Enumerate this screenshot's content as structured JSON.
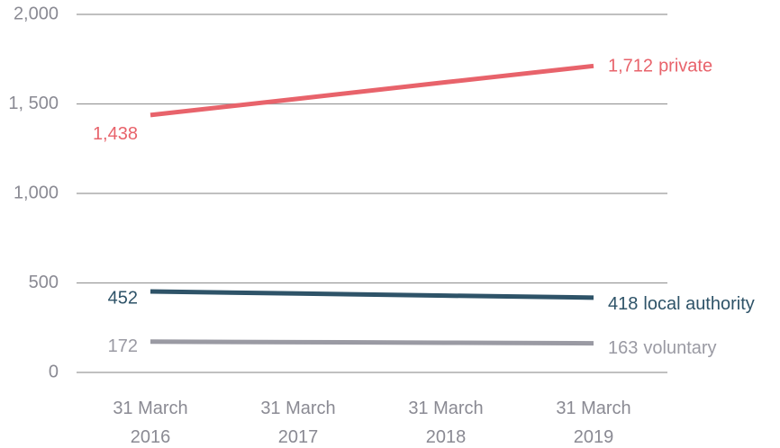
{
  "chart_data": {
    "type": "line",
    "categories": [
      "31 March 2016",
      "31 March 2017",
      "31 March 2018",
      "31 March 2019"
    ],
    "series": [
      {
        "name": "private",
        "color": "#e8636b",
        "values": [
          1438,
          1529,
          1621,
          1712
        ],
        "value_labels": [
          "1,438",
          null,
          null,
          "1,712"
        ]
      },
      {
        "name": "local authority",
        "color": "#2e5368",
        "values": [
          452,
          441,
          429,
          418
        ],
        "value_labels": [
          "452",
          null,
          null,
          "418"
        ]
      },
      {
        "name": "voluntary",
        "color": "#9a9aa3",
        "values": [
          172,
          169,
          166,
          163
        ],
        "value_labels": [
          "172",
          null,
          null,
          "163"
        ]
      }
    ],
    "ylim": [
      0,
      2000
    ],
    "yticks": [
      0,
      500,
      {
        "value": 1000,
        "label": "1,000"
      },
      {
        "value": 1500,
        "label": "1, 500"
      },
      {
        "value": 2000,
        "label": "2,000"
      }
    ],
    "grid": true
  }
}
